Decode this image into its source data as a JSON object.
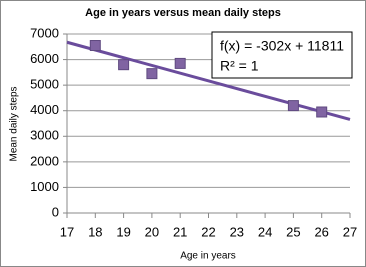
{
  "chart_data": {
    "type": "scatter",
    "title": "Age in years versus mean daily steps",
    "x_label": "Age in years",
    "y_label": "Mean daily steps",
    "x": [
      18,
      19,
      20,
      21,
      25,
      26
    ],
    "values": [
      6550,
      5800,
      5450,
      5850,
      4200,
      3950
    ],
    "color": "#8064a2",
    "trendline": {
      "x": [
        17,
        27
      ],
      "values": [
        6677,
        3657
      ],
      "color": "#6a4c9c"
    },
    "annotations": [
      "f(x) = -302x + 11811",
      "R² = 1"
    ],
    "xlim": [
      17,
      27
    ],
    "xticks": [
      17,
      18,
      19,
      20,
      21,
      22,
      23,
      24,
      25,
      26,
      27
    ],
    "ylim": [
      0,
      7000
    ],
    "yticks": [
      0,
      1000,
      2000,
      3000,
      4000,
      5000,
      6000,
      7000
    ],
    "grid": true
  }
}
